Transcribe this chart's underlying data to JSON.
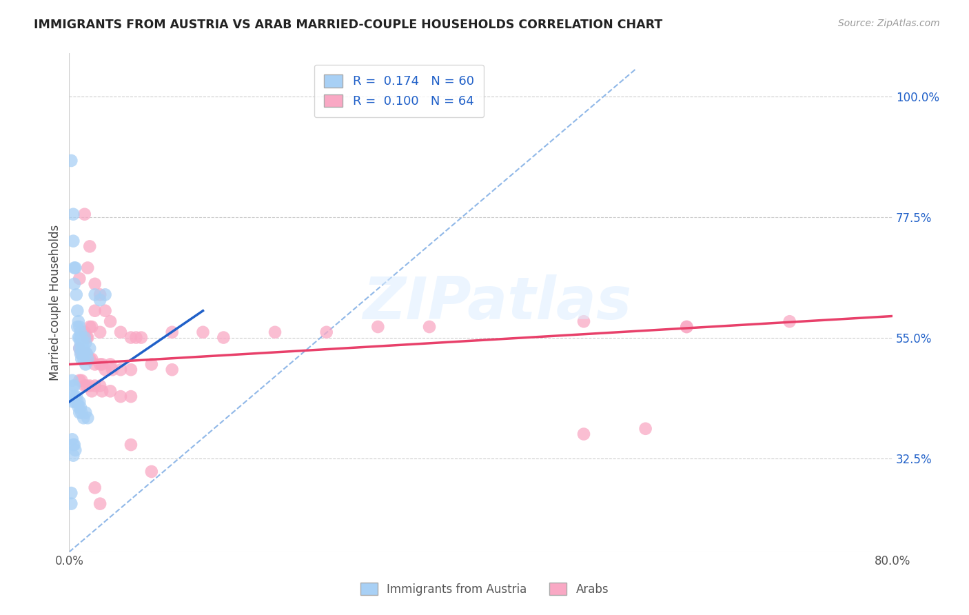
{
  "title": "IMMIGRANTS FROM AUSTRIA VS ARAB MARRIED-COUPLE HOUSEHOLDS CORRELATION CHART",
  "source": "Source: ZipAtlas.com",
  "ylabel": "Married-couple Households",
  "xlim": [
    0.0,
    0.8
  ],
  "ylim": [
    0.15,
    1.08
  ],
  "x_ticks": [
    0.0,
    0.8
  ],
  "x_tick_labels": [
    "0.0%",
    "80.0%"
  ],
  "y_ticks": [
    0.325,
    0.55,
    0.775,
    1.0
  ],
  "y_tick_labels": [
    "32.5%",
    "55.0%",
    "77.5%",
    "100.0%"
  ],
  "color_blue": "#A8D0F5",
  "color_pink": "#F9A8C4",
  "color_blue_line": "#2060C8",
  "color_pink_line": "#E8406A",
  "color_diagonal": "#90B8E8",
  "watermark": "ZIPatlas",
  "blue_scatter": [
    [
      0.002,
      0.88
    ],
    [
      0.004,
      0.78
    ],
    [
      0.004,
      0.73
    ],
    [
      0.005,
      0.68
    ],
    [
      0.005,
      0.65
    ],
    [
      0.006,
      0.68
    ],
    [
      0.007,
      0.63
    ],
    [
      0.008,
      0.6
    ],
    [
      0.008,
      0.57
    ],
    [
      0.009,
      0.58
    ],
    [
      0.009,
      0.55
    ],
    [
      0.01,
      0.57
    ],
    [
      0.01,
      0.55
    ],
    [
      0.01,
      0.53
    ],
    [
      0.011,
      0.56
    ],
    [
      0.011,
      0.54
    ],
    [
      0.011,
      0.52
    ],
    [
      0.012,
      0.55
    ],
    [
      0.012,
      0.53
    ],
    [
      0.012,
      0.51
    ],
    [
      0.013,
      0.54
    ],
    [
      0.013,
      0.52
    ],
    [
      0.014,
      0.53
    ],
    [
      0.014,
      0.51
    ],
    [
      0.015,
      0.55
    ],
    [
      0.015,
      0.52
    ],
    [
      0.016,
      0.54
    ],
    [
      0.016,
      0.5
    ],
    [
      0.017,
      0.52
    ],
    [
      0.018,
      0.51
    ],
    [
      0.02,
      0.53
    ],
    [
      0.025,
      0.63
    ],
    [
      0.03,
      0.62
    ],
    [
      0.035,
      0.63
    ],
    [
      0.003,
      0.47
    ],
    [
      0.003,
      0.44
    ],
    [
      0.004,
      0.46
    ],
    [
      0.004,
      0.43
    ],
    [
      0.005,
      0.46
    ],
    [
      0.005,
      0.44
    ],
    [
      0.006,
      0.43
    ],
    [
      0.007,
      0.44
    ],
    [
      0.008,
      0.43
    ],
    [
      0.009,
      0.42
    ],
    [
      0.01,
      0.43
    ],
    [
      0.01,
      0.41
    ],
    [
      0.011,
      0.42
    ],
    [
      0.012,
      0.41
    ],
    [
      0.014,
      0.4
    ],
    [
      0.016,
      0.41
    ],
    [
      0.018,
      0.4
    ],
    [
      0.003,
      0.36
    ],
    [
      0.004,
      0.35
    ],
    [
      0.004,
      0.33
    ],
    [
      0.005,
      0.35
    ],
    [
      0.006,
      0.34
    ],
    [
      0.002,
      0.26
    ],
    [
      0.002,
      0.24
    ]
  ],
  "pink_scatter": [
    [
      0.015,
      0.78
    ],
    [
      0.02,
      0.72
    ],
    [
      0.018,
      0.68
    ],
    [
      0.01,
      0.66
    ],
    [
      0.025,
      0.65
    ],
    [
      0.03,
      0.63
    ],
    [
      0.025,
      0.6
    ],
    [
      0.035,
      0.6
    ],
    [
      0.04,
      0.58
    ],
    [
      0.02,
      0.57
    ],
    [
      0.022,
      0.57
    ],
    [
      0.015,
      0.56
    ],
    [
      0.017,
      0.55
    ],
    [
      0.018,
      0.55
    ],
    [
      0.03,
      0.56
    ],
    [
      0.05,
      0.56
    ],
    [
      0.06,
      0.55
    ],
    [
      0.065,
      0.55
    ],
    [
      0.07,
      0.55
    ],
    [
      0.1,
      0.56
    ],
    [
      0.13,
      0.56
    ],
    [
      0.15,
      0.55
    ],
    [
      0.2,
      0.56
    ],
    [
      0.25,
      0.56
    ],
    [
      0.3,
      0.57
    ],
    [
      0.35,
      0.57
    ],
    [
      0.5,
      0.58
    ],
    [
      0.6,
      0.57
    ],
    [
      0.7,
      0.58
    ],
    [
      0.6,
      0.57
    ],
    [
      0.01,
      0.53
    ],
    [
      0.012,
      0.52
    ],
    [
      0.015,
      0.52
    ],
    [
      0.017,
      0.52
    ],
    [
      0.018,
      0.51
    ],
    [
      0.02,
      0.51
    ],
    [
      0.022,
      0.51
    ],
    [
      0.025,
      0.5
    ],
    [
      0.03,
      0.5
    ],
    [
      0.032,
      0.5
    ],
    [
      0.035,
      0.49
    ],
    [
      0.04,
      0.5
    ],
    [
      0.042,
      0.49
    ],
    [
      0.05,
      0.49
    ],
    [
      0.06,
      0.49
    ],
    [
      0.08,
      0.5
    ],
    [
      0.1,
      0.49
    ],
    [
      0.01,
      0.47
    ],
    [
      0.012,
      0.47
    ],
    [
      0.015,
      0.46
    ],
    [
      0.017,
      0.46
    ],
    [
      0.02,
      0.46
    ],
    [
      0.022,
      0.45
    ],
    [
      0.025,
      0.46
    ],
    [
      0.03,
      0.46
    ],
    [
      0.032,
      0.45
    ],
    [
      0.04,
      0.45
    ],
    [
      0.05,
      0.44
    ],
    [
      0.06,
      0.44
    ],
    [
      0.025,
      0.27
    ],
    [
      0.03,
      0.24
    ],
    [
      0.06,
      0.35
    ],
    [
      0.08,
      0.3
    ],
    [
      0.5,
      0.37
    ],
    [
      0.56,
      0.38
    ]
  ],
  "blue_line_x": [
    0.0,
    0.13
  ],
  "blue_line_y": [
    0.43,
    0.6
  ],
  "pink_line_x": [
    0.0,
    0.8
  ],
  "pink_line_y": [
    0.5,
    0.59
  ],
  "diag_line_x": [
    0.0,
    0.55
  ],
  "diag_line_y": [
    0.15,
    1.05
  ]
}
